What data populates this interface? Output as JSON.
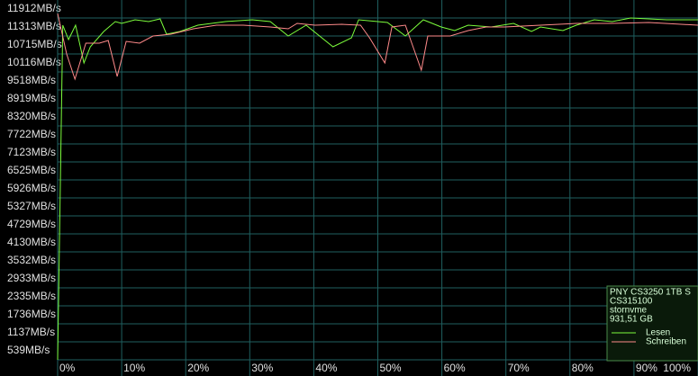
{
  "chart_data": {
    "type": "line",
    "xlim": [
      0,
      100
    ],
    "ylim": [
      0,
      12511
    ],
    "grid": true,
    "legend_position": "lower right",
    "xticks": [
      {
        "value": 0,
        "label": "0%"
      },
      {
        "value": 10,
        "label": "10%"
      },
      {
        "value": 20,
        "label": "20%"
      },
      {
        "value": 30,
        "label": "30%"
      },
      {
        "value": 40,
        "label": "40%"
      },
      {
        "value": 50,
        "label": "50%"
      },
      {
        "value": 60,
        "label": "60%"
      },
      {
        "value": 70,
        "label": "70%"
      },
      {
        "value": 80,
        "label": "80%"
      },
      {
        "value": 90,
        "label": "90%"
      },
      {
        "value": 100,
        "label": "100%"
      }
    ],
    "yticks": [
      {
        "value": 11912,
        "label": "11912MB/s"
      },
      {
        "value": 11313,
        "label": "11313MB/s"
      },
      {
        "value": 10715,
        "label": "10715MB/s"
      },
      {
        "value": 10116,
        "label": "10116MB/s"
      },
      {
        "value": 9518,
        "label": "9518MB/s"
      },
      {
        "value": 8919,
        "label": "8919MB/s"
      },
      {
        "value": 8320,
        "label": "8320MB/s"
      },
      {
        "value": 7722,
        "label": "7722MB/s"
      },
      {
        "value": 7123,
        "label": "7123MB/s"
      },
      {
        "value": 6525,
        "label": "6525MB/s"
      },
      {
        "value": 5926,
        "label": "5926MB/s"
      },
      {
        "value": 5327,
        "label": "5327MB/s"
      },
      {
        "value": 4729,
        "label": "4729MB/s"
      },
      {
        "value": 4130,
        "label": "4130MB/s"
      },
      {
        "value": 3532,
        "label": "3532MB/s"
      },
      {
        "value": 2933,
        "label": "2933MB/s"
      },
      {
        "value": 2335,
        "label": "2335MB/s"
      },
      {
        "value": 1736,
        "label": "1736MB/s"
      },
      {
        "value": 1137,
        "label": "1137MB/s"
      },
      {
        "value": 539,
        "label": "539MB/s"
      }
    ],
    "legend_info": [
      "PNY CS3250 1TB S",
      "CS315100",
      "stornvme",
      "931,51 GB"
    ],
    "series": [
      {
        "name": "Lesen",
        "color": "#7cfc3c",
        "x": [
          0,
          0.8,
          1.7,
          2.8,
          4.1,
          5.1,
          7.2,
          9.0,
          10.0,
          12.1,
          14.2,
          16.0,
          17.0,
          19.1,
          21.9,
          26.2,
          30.4,
          33.2,
          36.0,
          38.8,
          43.0,
          45.9,
          47.0,
          51.5,
          54.3,
          57.1,
          59.9,
          62.0,
          64.1,
          67.7,
          71.2,
          74.0,
          75.4,
          78.9,
          81.0,
          83.8,
          86.6,
          89.5,
          95.1,
          100
        ],
        "values": [
          539,
          11673,
          11194,
          11673,
          10416,
          10954,
          11463,
          11792,
          11733,
          11852,
          11792,
          11882,
          11373,
          11463,
          11673,
          11792,
          11852,
          11792,
          11313,
          11673,
          10954,
          11254,
          11852,
          11763,
          11313,
          11852,
          11613,
          11493,
          11673,
          11613,
          11733,
          11463,
          11613,
          11493,
          11673,
          11852,
          11792,
          11912,
          11852,
          11852
        ]
      },
      {
        "name": "Schreiben",
        "color": "#ff8a8a",
        "x": [
          0,
          1.4,
          2.7,
          4.4,
          6.5,
          7.9,
          9.3,
          10.7,
          12.8,
          14.9,
          17.7,
          21.2,
          24.8,
          29.0,
          33.2,
          36.0,
          37.4,
          40.2,
          44.4,
          47.3,
          48.7,
          51.1,
          52.2,
          54.3,
          56.8,
          57.8,
          61.3,
          64.1,
          66.9,
          69.8,
          75.4,
          81.0,
          86.6,
          92.3,
          100
        ],
        "values": [
          12062,
          10715,
          9877,
          11074,
          11074,
          11164,
          9967,
          11134,
          11074,
          11313,
          11373,
          11553,
          11673,
          11673,
          11613,
          11553,
          11733,
          11673,
          11703,
          11673,
          11254,
          10416,
          11613,
          11673,
          10177,
          11313,
          11313,
          11493,
          11613,
          11613,
          11673,
          11733,
          11733,
          11763,
          11673
        ]
      }
    ]
  }
}
